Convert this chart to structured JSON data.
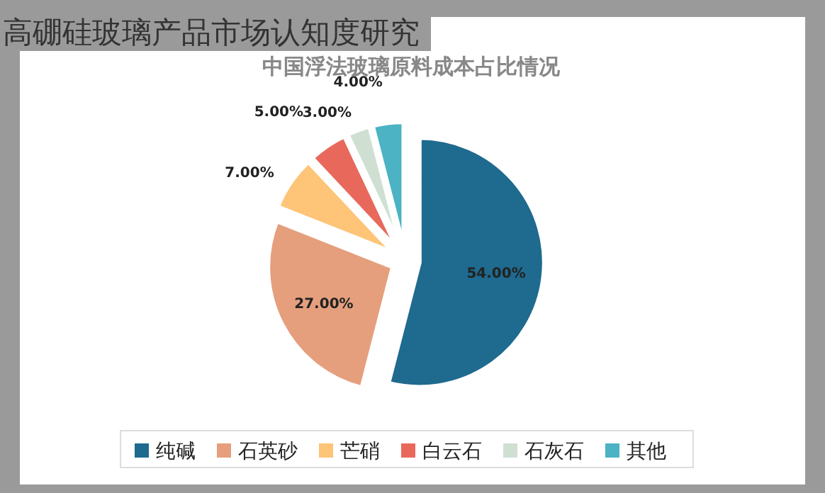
{
  "chart_data": {
    "type": "pie",
    "title": "高硼硅玻璃产品市场认知度研究",
    "subtitle": "中国浮法玻璃原料成本占比情况",
    "categories": [
      "纯碱",
      "石英砂",
      "芒硝",
      "白云石",
      "石灰石",
      "其他"
    ],
    "values": [
      54,
      27,
      7,
      5,
      3,
      4
    ],
    "value_labels": [
      "54.00%",
      "27.00%",
      "7.00%",
      "5.00%",
      "3.00%",
      "4.00%"
    ],
    "colors": [
      "#1f6a8f",
      "#e59f7d",
      "#fec477",
      "#e8695c",
      "#cfe0d3",
      "#4bb3c3"
    ],
    "legend": "bottom"
  }
}
